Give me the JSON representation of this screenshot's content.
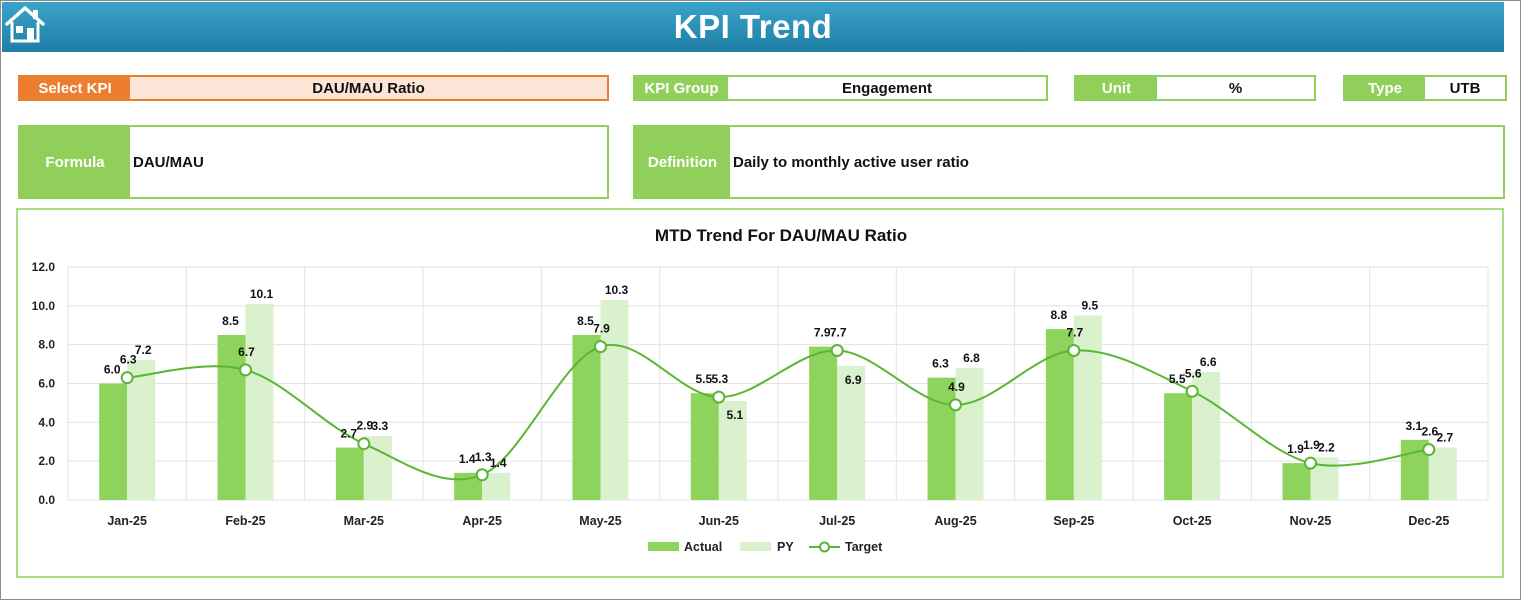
{
  "header": {
    "title": "KPI Trend",
    "home_icon": "home-icon"
  },
  "fields": {
    "select_kpi": {
      "label": "Select KPI",
      "value": "DAU/MAU Ratio"
    },
    "kpi_group": {
      "label": "KPI Group",
      "value": "Engagement"
    },
    "unit": {
      "label": "Unit",
      "value": "%"
    },
    "type": {
      "label": "Type",
      "value": "UTB"
    },
    "formula": {
      "label": "Formula",
      "value": "DAU/MAU"
    },
    "definition": {
      "label": "Definition",
      "value": "Daily to monthly active user ratio"
    }
  },
  "colors": {
    "accent_orange": "#ed7d31",
    "green": "#8fcf5a",
    "actual_bar": "#8ed35b",
    "py_bar": "#d9f1cd",
    "target_line": "#5ab532",
    "header_blue": "#2e90b8"
  },
  "chart_data": {
    "type": "bar",
    "title": "MTD Trend For DAU/MAU Ratio",
    "categories": [
      "Jan-25",
      "Feb-25",
      "Mar-25",
      "Apr-25",
      "May-25",
      "Jun-25",
      "Jul-25",
      "Aug-25",
      "Sep-25",
      "Oct-25",
      "Nov-25",
      "Dec-25"
    ],
    "series": [
      {
        "name": "Actual",
        "type": "bar",
        "values": [
          6.0,
          8.5,
          2.7,
          1.4,
          8.5,
          5.5,
          7.9,
          6.3,
          8.8,
          5.5,
          1.9,
          3.1
        ]
      },
      {
        "name": "PY",
        "type": "bar",
        "values": [
          7.2,
          10.1,
          3.3,
          1.4,
          10.3,
          5.1,
          6.9,
          6.8,
          9.5,
          6.6,
          2.2,
          2.7
        ]
      },
      {
        "name": "Target",
        "type": "line",
        "values": [
          6.3,
          6.7,
          2.9,
          1.3,
          7.9,
          5.3,
          7.7,
          4.9,
          7.7,
          5.6,
          1.9,
          2.6
        ]
      }
    ],
    "ylim": [
      0,
      12
    ],
    "yticks": [
      "0.0",
      "2.0",
      "4.0",
      "6.0",
      "8.0",
      "10.0",
      "12.0"
    ],
    "grid": true,
    "legend": "bottom"
  }
}
